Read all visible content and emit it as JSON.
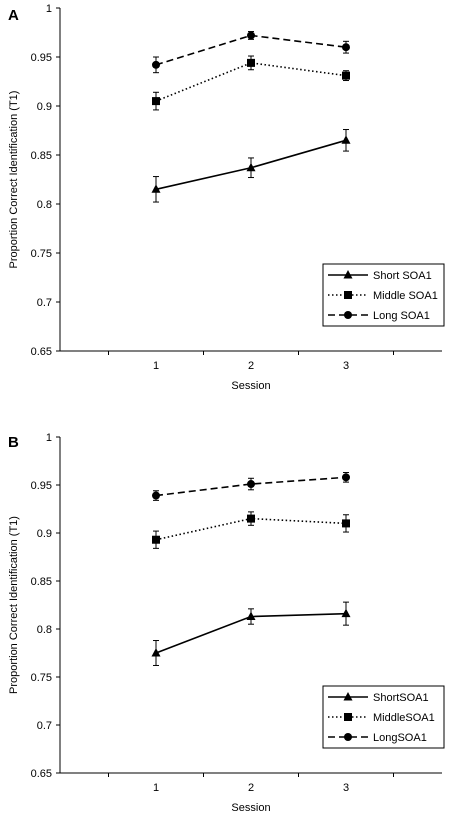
{
  "chart_data": [
    {
      "type": "line",
      "panel_label": "A",
      "xlabel": "Session",
      "ylabel": "Proportion Correct Identification (T1)",
      "categories": [
        "1",
        "2",
        "3"
      ],
      "ylim": [
        0.65,
        1.0
      ],
      "yticks": [
        "0.65",
        "0.7",
        "0.75",
        "0.8",
        "0.85",
        "0.9",
        "0.95",
        "1"
      ],
      "legend_position": "bottom-right",
      "series": [
        {
          "name": "Short SOA1",
          "marker": "triangle",
          "line": "solid",
          "values": [
            0.815,
            0.837,
            0.865
          ],
          "errors": [
            0.013,
            0.01,
            0.011
          ]
        },
        {
          "name": "Middle SOA1",
          "marker": "square",
          "line": "dotted",
          "values": [
            0.905,
            0.944,
            0.931
          ],
          "errors": [
            0.009,
            0.007,
            0.005
          ]
        },
        {
          "name": "Long SOA1",
          "marker": "circle",
          "line": "dashed",
          "values": [
            0.942,
            0.972,
            0.96
          ],
          "errors": [
            0.008,
            0.004,
            0.006
          ]
        }
      ]
    },
    {
      "type": "line",
      "panel_label": "B",
      "xlabel": "Session",
      "ylabel": "Proportion Correct Identification (T1)",
      "categories": [
        "1",
        "2",
        "3"
      ],
      "ylim": [
        0.65,
        1.0
      ],
      "yticks": [
        "0.65",
        "0.7",
        "0.75",
        "0.8",
        "0.85",
        "0.9",
        "0.95",
        "1"
      ],
      "legend_position": "bottom-right",
      "series": [
        {
          "name": "ShortSOA1",
          "marker": "triangle",
          "line": "solid",
          "values": [
            0.775,
            0.813,
            0.816
          ],
          "errors": [
            0.013,
            0.008,
            0.012
          ]
        },
        {
          "name": "MiddleSOA1",
          "marker": "square",
          "line": "dotted",
          "values": [
            0.893,
            0.915,
            0.91
          ],
          "errors": [
            0.009,
            0.007,
            0.009
          ]
        },
        {
          "name": "LongSOA1",
          "marker": "circle",
          "line": "dashed",
          "values": [
            0.939,
            0.951,
            0.958
          ],
          "errors": [
            0.005,
            0.006,
            0.005
          ]
        }
      ]
    }
  ]
}
